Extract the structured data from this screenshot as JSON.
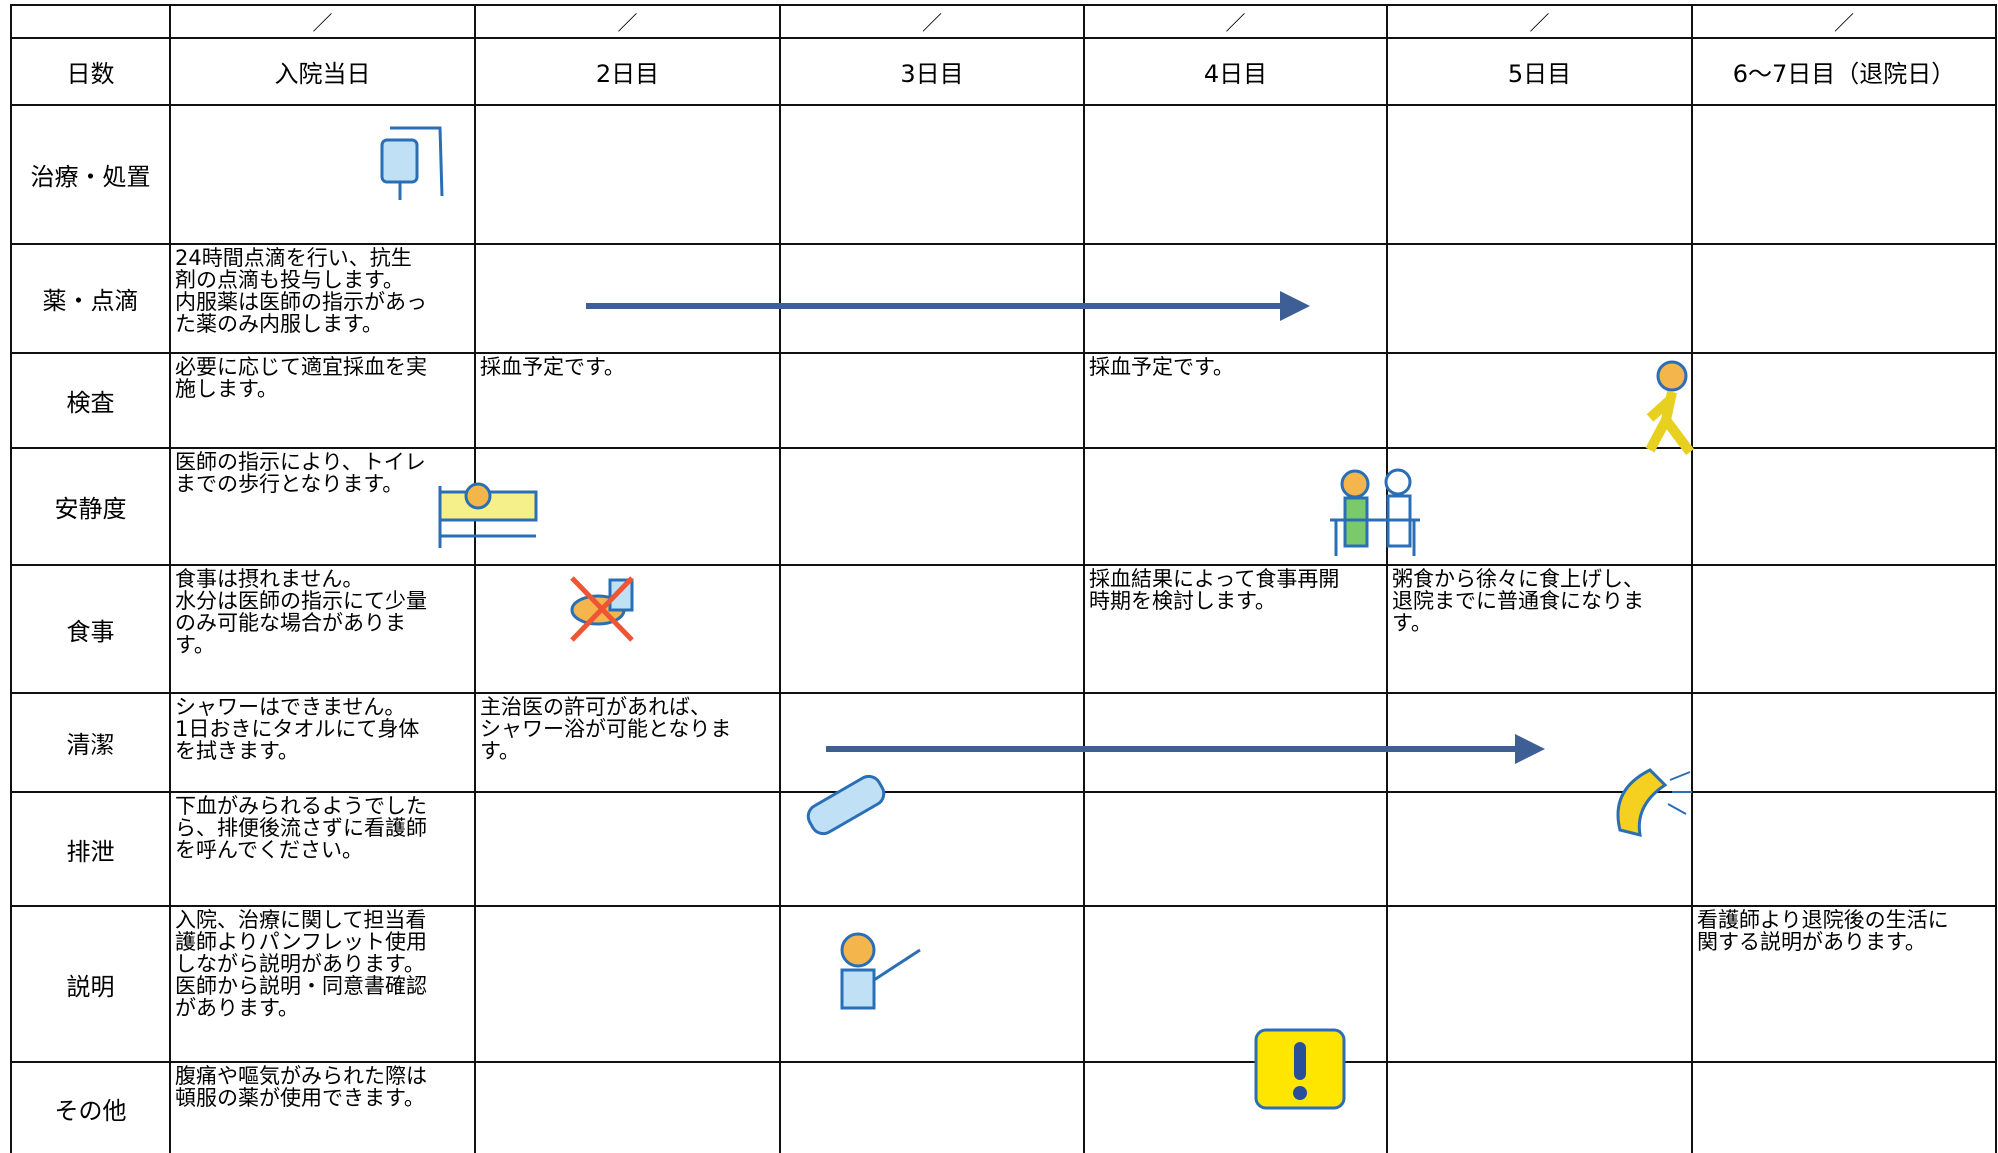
{
  "table": {
    "slashes": [
      "／",
      "／",
      "／",
      "／",
      "／",
      "／"
    ],
    "header": [
      "日数",
      "入院当日",
      "2日目",
      "3日目",
      "4日目",
      "5日目",
      "6〜7日目（退院日）"
    ],
    "rows": [
      {
        "label": "治療・処置",
        "cells": {}
      },
      {
        "label": "薬・点滴",
        "cells": {
          "入院当日": "24時間点滴を行い、抗生\n剤の点滴も投与します。\n内服薬は医師の指示があっ\nた薬のみ内服します。"
        }
      },
      {
        "label": "検査",
        "cells": {
          "入院当日": "必要に応じて適宜採血を実\n施します。",
          "2日目": "採血予定です。",
          "4日目": "採血予定です。"
        }
      },
      {
        "label": "安静度",
        "cells": {
          "入院当日": "医師の指示により、トイレ\nまでの歩行となります。"
        }
      },
      {
        "label": "食事",
        "cells": {
          "入院当日": "食事は摂れません。\n水分は医師の指示にて少量\nのみ可能な場合がありま\nす。",
          "4日目": "採血結果によって食事再開\n時期を検討します。",
          "5日目": "粥食から徐々に食上げし、\n退院までに普通食になりま\nす。"
        }
      },
      {
        "label": "清潔",
        "cells": {
          "入院当日": "シャワーはできません。\n1日おきにタオルにて身体\nを拭きます。",
          "2日目": "主治医の許可があれば、\nシャワー浴が可能となりま\nす。"
        }
      },
      {
        "label": "排泄",
        "cells": {
          "入院当日": "下血がみられるようでした\nら、排便後流さずに看護師\nを呼んでください。"
        }
      },
      {
        "label": "説明",
        "cells": {
          "入院当日": "入院、治療に関して担当看\n護師よりパンフレット使用\nしながら説明があります。\n医師から説明・同意書確認\nがあります。",
          "6〜7日目（退院日）": "看護師より退院後の生活に\n関する説明があります。"
        }
      },
      {
        "label": "その他",
        "cells": {
          "入院当日": "腹痛や嘔気がみられた際は\n頓服の薬が使用できます。"
        }
      }
    ]
  }
}
